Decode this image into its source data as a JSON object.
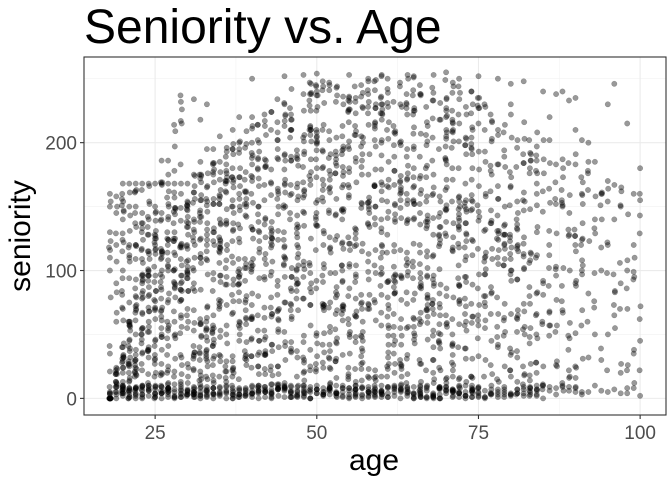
{
  "chart_data": {
    "type": "scatter",
    "title": "Seniority vs. Age",
    "xlabel": "age",
    "ylabel": "seniority",
    "xlim": [
      14,
      104
    ],
    "ylim": [
      -13,
      267
    ],
    "xticks": [
      25,
      50,
      75,
      100
    ],
    "yticks": [
      0,
      100,
      200
    ],
    "xtick_labels": [
      "25",
      "50",
      "75",
      "100"
    ],
    "ytick_labels": [
      "0",
      "100",
      "200"
    ],
    "grid": true,
    "legend": "none",
    "theme": "bw",
    "point_color": "#000000",
    "point_alpha": 0.4,
    "x_range_data": [
      18,
      100
    ],
    "y_range_data": [
      0,
      256
    ],
    "series": [
      {
        "points": [
          [
            18,
            160
          ],
          [
            18,
            150
          ],
          [
            18,
            130
          ],
          [
            18,
            110
          ],
          [
            18,
            100
          ],
          [
            18,
            35
          ],
          [
            18,
            5
          ],
          [
            19,
            158
          ],
          [
            19,
            145
          ],
          [
            19,
            120
          ],
          [
            19,
            90
          ],
          [
            19,
            60
          ],
          [
            19,
            3
          ],
          [
            20,
            168
          ],
          [
            20,
            140
          ],
          [
            20,
            100
          ],
          [
            20,
            70
          ],
          [
            20,
            40
          ],
          [
            20,
            20
          ],
          [
            21,
            168
          ],
          [
            21,
            150
          ],
          [
            21,
            110
          ],
          [
            21,
            75
          ],
          [
            21,
            45
          ],
          [
            21,
            25
          ],
          [
            22,
            168
          ],
          [
            22,
            150
          ],
          [
            22,
            120
          ],
          [
            22,
            80
          ],
          [
            22,
            50
          ],
          [
            22,
            30
          ],
          [
            23,
            168
          ],
          [
            23,
            145
          ],
          [
            23,
            90
          ],
          [
            23,
            55
          ],
          [
            23,
            35
          ],
          [
            24,
            168
          ],
          [
            24,
            140
          ],
          [
            24,
            100
          ],
          [
            24,
            60
          ],
          [
            24,
            40
          ],
          [
            25,
            168
          ],
          [
            25,
            150
          ],
          [
            25,
            120
          ],
          [
            25,
            70
          ],
          [
            25,
            45
          ],
          [
            26,
            186
          ],
          [
            26,
            168
          ],
          [
            26,
            145
          ],
          [
            26,
            110
          ],
          [
            26,
            50
          ],
          [
            27,
            186
          ],
          [
            27,
            168
          ],
          [
            27,
            140
          ],
          [
            27,
            100
          ],
          [
            27,
            55
          ],
          [
            28,
            168
          ],
          [
            28,
            130
          ],
          [
            28,
            90
          ],
          [
            28,
            60
          ],
          [
            29,
            168
          ],
          [
            29,
            160
          ],
          [
            29,
            120
          ],
          [
            29,
            65
          ],
          [
            30,
            168
          ],
          [
            30,
            150
          ],
          [
            30,
            100
          ],
          [
            30,
            70
          ],
          [
            31,
            234
          ],
          [
            31,
            175
          ],
          [
            31,
            140
          ],
          [
            31,
            90
          ],
          [
            32,
            218
          ],
          [
            32,
            185
          ],
          [
            32,
            155
          ],
          [
            32,
            110
          ],
          [
            33,
            230
          ],
          [
            33,
            195
          ],
          [
            33,
            165
          ],
          [
            33,
            120
          ],
          [
            34,
            195
          ],
          [
            34,
            175
          ],
          [
            34,
            130
          ],
          [
            35,
            205
          ],
          [
            35,
            185
          ],
          [
            35,
            140
          ],
          [
            37,
            210
          ],
          [
            37,
            195
          ],
          [
            37,
            150
          ],
          [
            38,
            220
          ],
          [
            38,
            200
          ],
          [
            38,
            160
          ],
          [
            40,
            250
          ],
          [
            40,
            220
          ],
          [
            40,
            170
          ],
          [
            45,
            252
          ],
          [
            45,
            230
          ],
          [
            45,
            190
          ],
          [
            50,
            254
          ],
          [
            50,
            240
          ],
          [
            50,
            200
          ],
          [
            55,
            253
          ],
          [
            55,
            235
          ],
          [
            55,
            195
          ],
          [
            60,
            252
          ],
          [
            60,
            230
          ],
          [
            60,
            190
          ],
          [
            62,
            208
          ],
          [
            65,
            252
          ],
          [
            65,
            225
          ],
          [
            70,
            255
          ],
          [
            70,
            220
          ],
          [
            72,
            250
          ],
          [
            75,
            252
          ],
          [
            75,
            215
          ],
          [
            78,
            250
          ],
          [
            80,
            246
          ],
          [
            80,
            230
          ],
          [
            82,
            248
          ],
          [
            85,
            240
          ],
          [
            86,
            220
          ],
          [
            87,
            238
          ],
          [
            88,
            240
          ],
          [
            88,
            150
          ],
          [
            89,
            233
          ],
          [
            90,
            235
          ],
          [
            90,
            210
          ],
          [
            90,
            90
          ],
          [
            91,
            202
          ],
          [
            91,
            160
          ],
          [
            91,
            100
          ],
          [
            92,
            200
          ],
          [
            92,
            185
          ],
          [
            92,
            82
          ],
          [
            93,
            185
          ],
          [
            93,
            140
          ],
          [
            93,
            50
          ],
          [
            94,
            160
          ],
          [
            94,
            100
          ],
          [
            94,
            30
          ],
          [
            95,
            230
          ],
          [
            95,
            170
          ],
          [
            95,
            120
          ],
          [
            96,
            246
          ],
          [
            96,
            140
          ],
          [
            96,
            65
          ],
          [
            97,
            150
          ],
          [
            97,
            90
          ],
          [
            97,
            20
          ],
          [
            98,
            215
          ],
          [
            98,
            100
          ],
          [
            98,
            8
          ],
          [
            99,
            160
          ],
          [
            99,
            120
          ],
          [
            99,
            35
          ],
          [
            100,
            180
          ],
          [
            100,
            155
          ],
          [
            100,
            45
          ]
        ]
      }
    ]
  }
}
